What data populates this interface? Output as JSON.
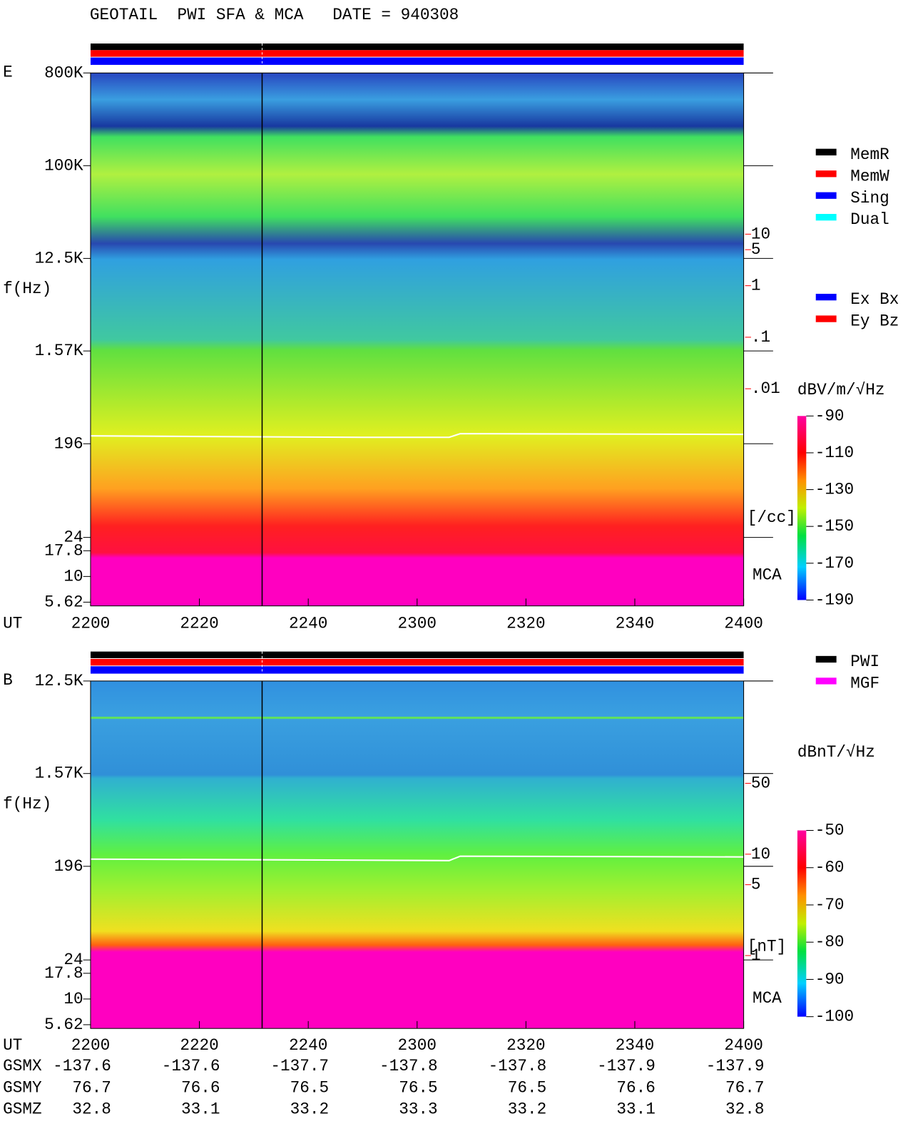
{
  "header": {
    "title": "GEOTAIL  PWI SFA & MCA   DATE = 940308"
  },
  "chart_data": [
    {
      "type": "spectrogram",
      "panel": "E",
      "ylabel": "f(Hz)",
      "xlabel": "UT",
      "log_y": true,
      "ylim": [
        5,
        800000
      ],
      "yticks": [
        {
          "value": 800000,
          "label": "800K"
        },
        {
          "value": 100000,
          "label": "100K"
        },
        {
          "value": 12500,
          "label": "12.5K"
        },
        {
          "value": 1570,
          "label": "1.57K"
        },
        196,
        24,
        17.8,
        10,
        5.62
      ],
      "x_categories": [
        "2200",
        "2220",
        "2240",
        "2300",
        "2320",
        "2340",
        "2400"
      ],
      "y2lim": [
        0.01,
        10
      ],
      "y2ticks": [
        10,
        5,
        1,
        {
          "value": 0.1,
          "label": ".1"
        },
        {
          "value": 0.01,
          "label": ".01"
        }
      ],
      "y2label": "[/cc]",
      "color_y2": "#ff0000",
      "band_label": "MCA",
      "clim": [
        -190,
        -90
      ],
      "cticks": [
        -90,
        -110,
        -130,
        -150,
        -170,
        -190
      ],
      "cbar_label": "dBV/m/√Hz",
      "legend": [
        {
          "name": "MemR",
          "color": "#000000"
        },
        {
          "name": "MemW",
          "color": "#ff0000"
        },
        {
          "name": "Sing",
          "color": "#0000ff"
        },
        {
          "name": "Dual",
          "color": "#00ffff"
        }
      ],
      "legend2": [
        {
          "name": "Ex Bx",
          "color": "#0000ff"
        },
        {
          "name": "Ey Bz",
          "color": "#ff0000"
        }
      ]
    },
    {
      "type": "spectrogram",
      "panel": "B",
      "ylabel": "f(Hz)",
      "xlabel": "UT",
      "log_y": true,
      "ylim": [
        5,
        12500
      ],
      "yticks": [
        {
          "value": 12500,
          "label": "12.5K"
        },
        {
          "value": 1570,
          "label": "1.57K"
        },
        196,
        24,
        17.8,
        10,
        5.62
      ],
      "x_categories": [
        "2200",
        "2220",
        "2240",
        "2300",
        "2320",
        "2340",
        "2400"
      ],
      "y2lim": [
        1,
        50
      ],
      "y2ticks": [
        50,
        10,
        5,
        1
      ],
      "y2label": "[nT]",
      "color_y2": "#ff0000",
      "band_label": "MCA",
      "clim": [
        -100,
        -50
      ],
      "cticks": [
        -50,
        -60,
        -70,
        -80,
        -90,
        -100
      ],
      "cbar_label": "dBnT/√Hz",
      "legend": [
        {
          "name": "PWI",
          "color": "#000000"
        },
        {
          "name": "MGF",
          "color": "#ff00ff"
        }
      ]
    }
  ],
  "orbit": {
    "labels": [
      "GSMX",
      "GSMY",
      "GSMZ"
    ],
    "rows": [
      [
        -137.6,
        -137.6,
        -137.7,
        -137.8,
        -137.8,
        -137.9,
        -137.9
      ],
      [
        76.7,
        76.6,
        76.5,
        76.5,
        76.5,
        76.6,
        76.7
      ],
      [
        32.8,
        33.1,
        33.2,
        33.3,
        33.2,
        33.1,
        32.8
      ]
    ]
  }
}
